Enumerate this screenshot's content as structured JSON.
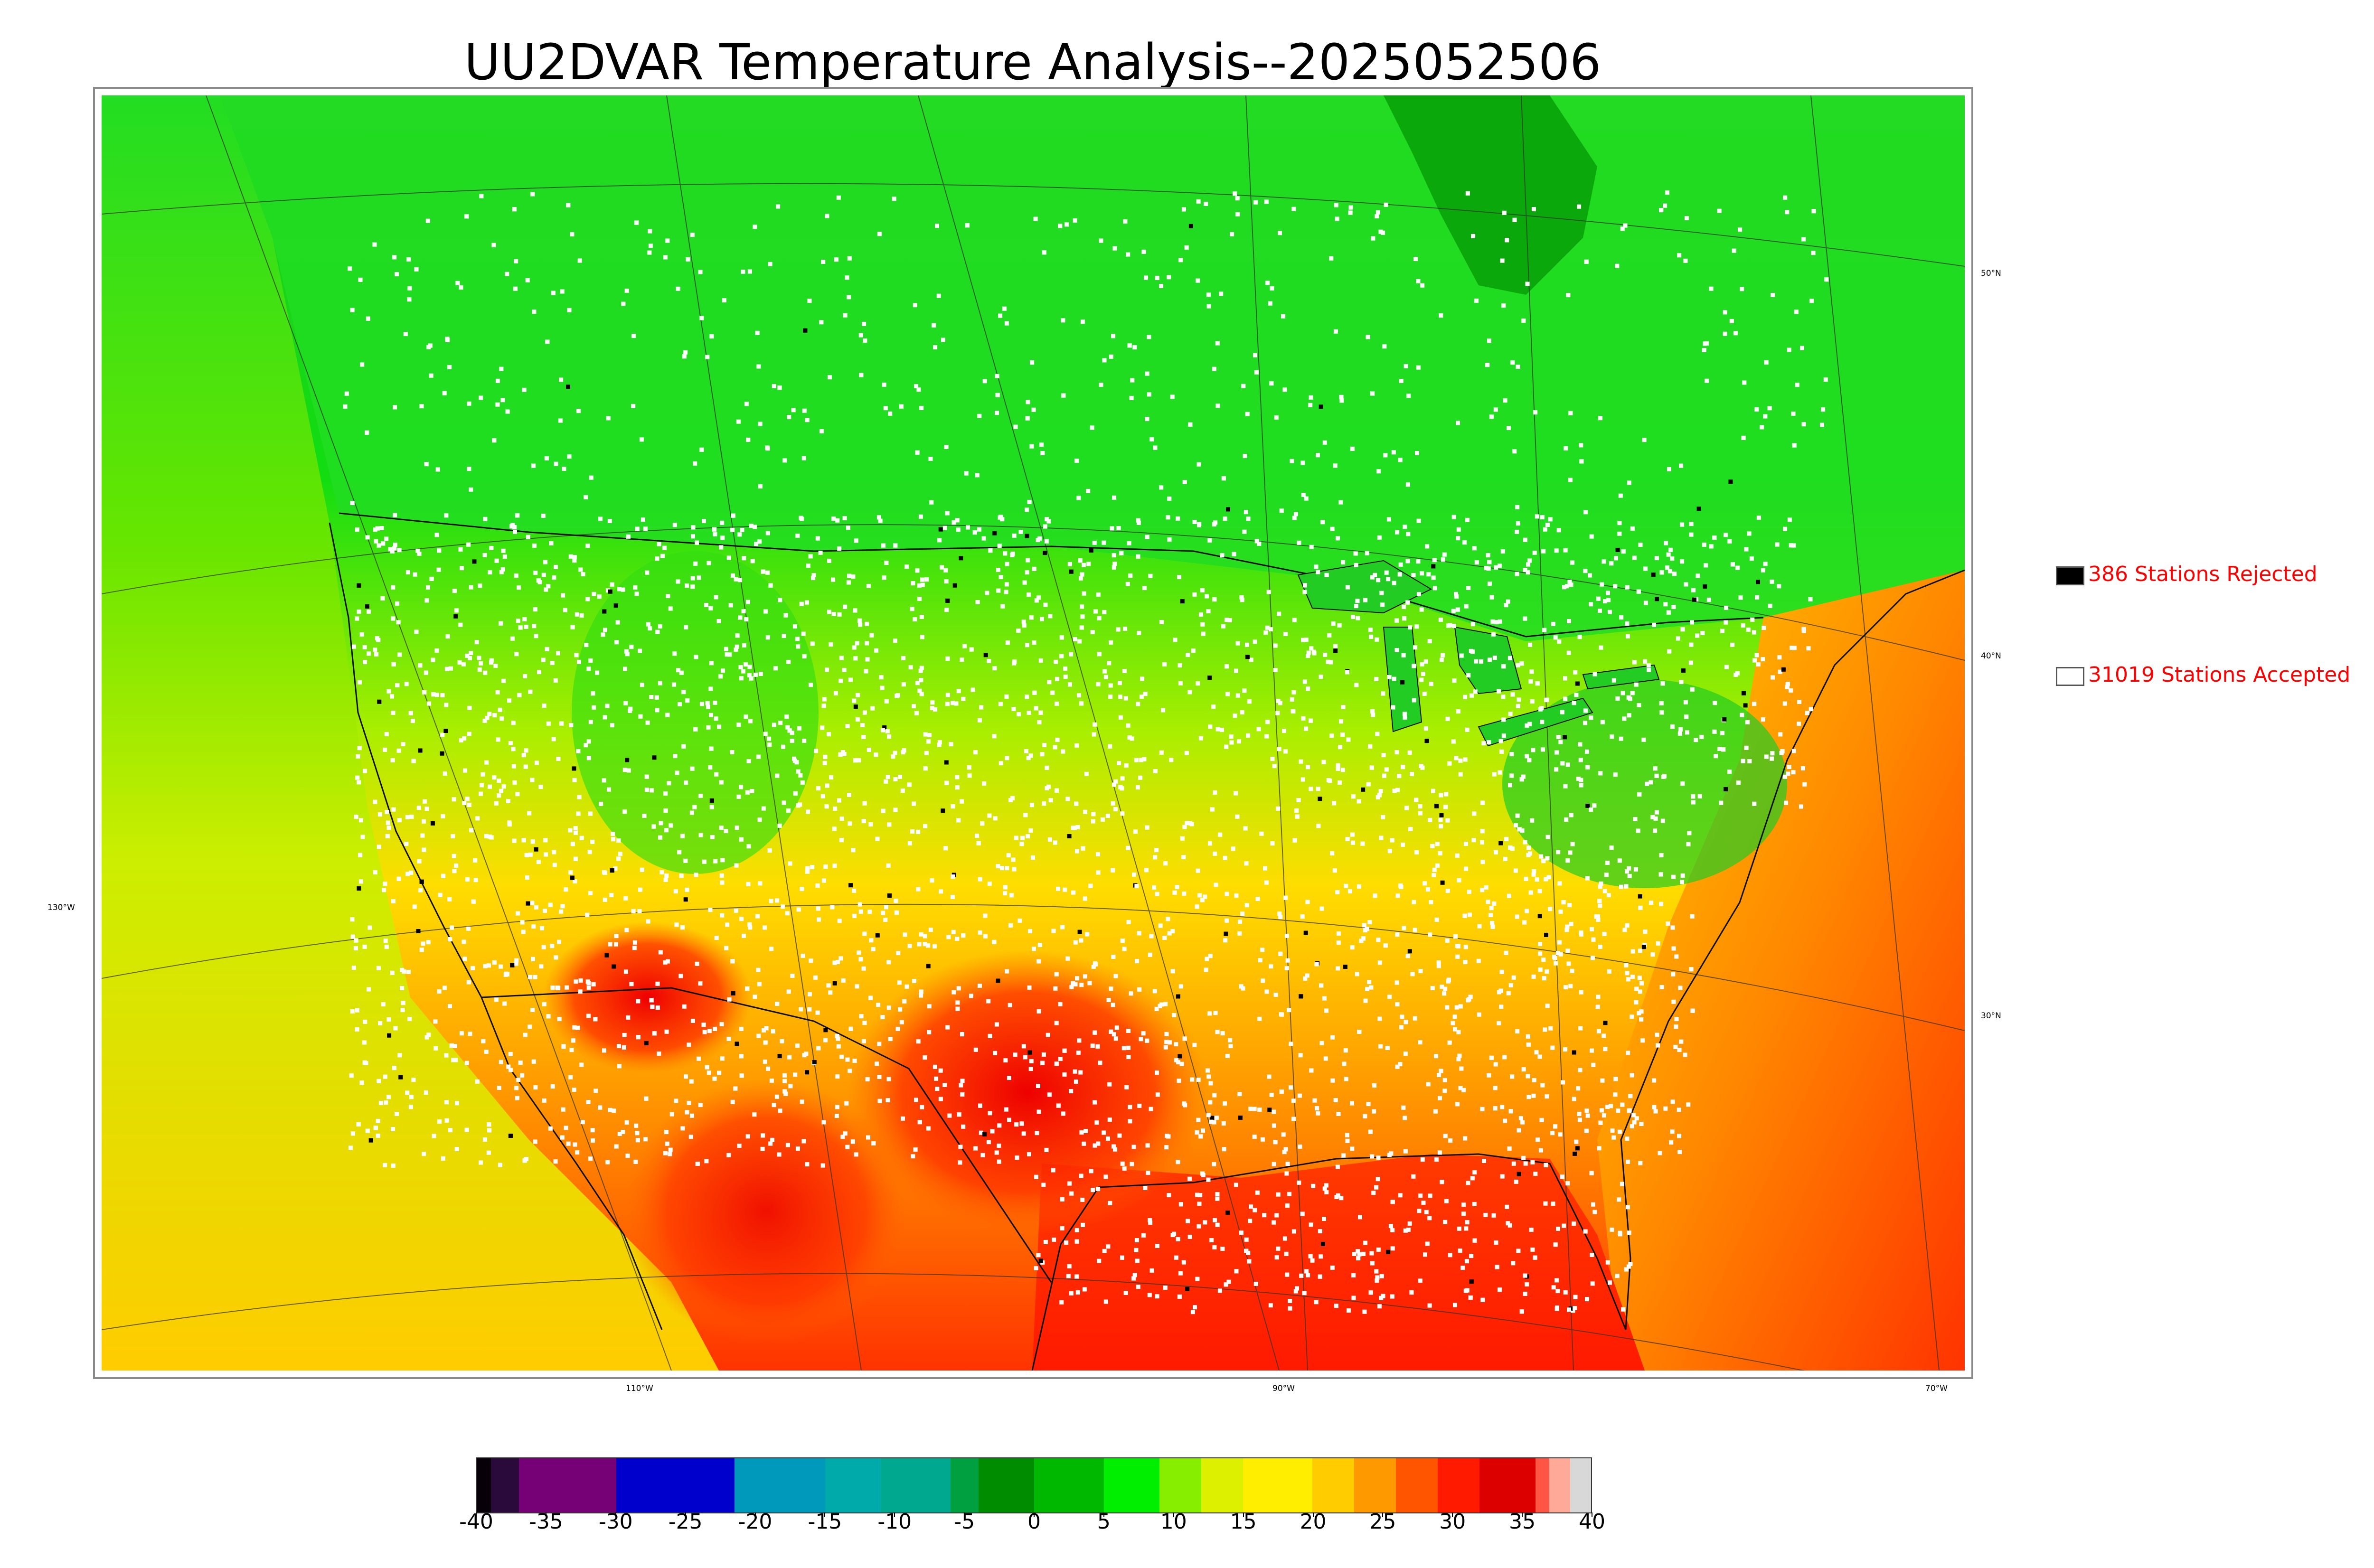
{
  "title": "UU2DVAR Temperature Analysis--2025052506",
  "map": {
    "latitude_labels": [
      "50°N",
      "40°N",
      "30°N"
    ],
    "longitude_labels": [
      "130°W",
      "110°W",
      "90°W",
      "70°W"
    ],
    "colors": {
      "ocean_gulf": "#ff2a00",
      "land_cool": "#22dd22",
      "land_warm": "#ffd400",
      "station_accepted": "#ffffff",
      "station_rejected": "#000000"
    }
  },
  "legend": {
    "rejected": {
      "label": "386 Stations Rejected",
      "count": 386,
      "swatch_color": "#000000"
    },
    "accepted": {
      "label": "31019 Stations Accepted",
      "count": 31019,
      "swatch_color": "#ffffff"
    }
  },
  "colorbar": {
    "min": -40,
    "max": 40,
    "tick_labels": [
      "-40",
      "-35",
      "-30",
      "-25",
      "-20",
      "-15",
      "-10",
      "-5",
      "0",
      "5",
      "10",
      "15",
      "20",
      "25",
      "30",
      "35",
      "40"
    ],
    "stops": [
      {
        "from": -40,
        "to": -39,
        "color": "#080008"
      },
      {
        "from": -39,
        "to": -37,
        "color": "#2a0a3a"
      },
      {
        "from": -37,
        "to": -30,
        "color": "#760076"
      },
      {
        "from": -30,
        "to": -21.5,
        "color": "#0000cc"
      },
      {
        "from": -21.5,
        "to": -15,
        "color": "#0099bb"
      },
      {
        "from": -15,
        "to": -11,
        "color": "#00aaaa"
      },
      {
        "from": -11,
        "to": -6,
        "color": "#00a890"
      },
      {
        "from": -6,
        "to": -4,
        "color": "#00a040"
      },
      {
        "from": -4,
        "to": 0,
        "color": "#008c00"
      },
      {
        "from": 0,
        "to": 5,
        "color": "#00b800"
      },
      {
        "from": 5,
        "to": 9,
        "color": "#00ee00"
      },
      {
        "from": 9,
        "to": 12,
        "color": "#88ee00"
      },
      {
        "from": 12,
        "to": 15,
        "color": "#ddf000"
      },
      {
        "from": 15,
        "to": 20,
        "color": "#ffee00"
      },
      {
        "from": 20,
        "to": 23,
        "color": "#ffcc00"
      },
      {
        "from": 23,
        "to": 26,
        "color": "#ff9900"
      },
      {
        "from": 26,
        "to": 29,
        "color": "#ff5500"
      },
      {
        "from": 29,
        "to": 32,
        "color": "#ff1a00"
      },
      {
        "from": 32,
        "to": 36,
        "color": "#dd0000"
      },
      {
        "from": 36,
        "to": 37,
        "color": "#ff5544"
      },
      {
        "from": 37,
        "to": 38.5,
        "color": "#ffaa99"
      },
      {
        "from": 38.5,
        "to": 40,
        "color": "#d8d8d8"
      }
    ]
  }
}
